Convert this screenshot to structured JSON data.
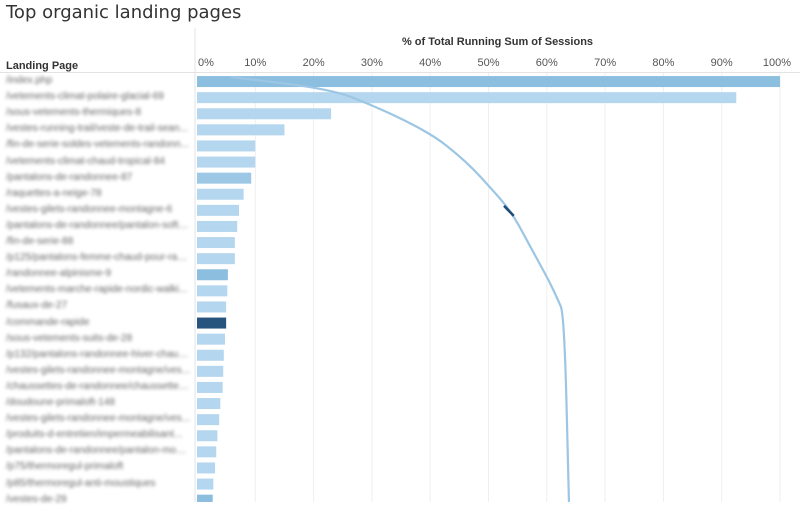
{
  "chart_data": {
    "type": "bar",
    "title": "Top organic landing pages",
    "axis_title": "% of Total Running Sum of Sessions",
    "row_header": "Landing Page",
    "xlim": [
      0,
      100
    ],
    "x_ticks": [
      "0%",
      "10%",
      "20%",
      "30%",
      "40%",
      "50%",
      "60%",
      "70%",
      "80%",
      "90%",
      "100%"
    ],
    "grid": true,
    "categories": [
      "/index.php",
      "/vetements-climat-polaire-glacial-69",
      "/sous-vetements-thermiques-8",
      "/vestes-running-trail/veste-de-trail-sean...",
      "/fin-de-serie-soldes-vetements-randonn...",
      "/vetements-climat-chaud-tropical-84",
      "/pantalons-de-randonnee-87",
      "/raquettes-a-neige-78",
      "/vestes-gilets-randonnee-montagne-6",
      "/pantalons-de-randonnee/pantalon-softs...",
      "/fin-de-serie-88",
      "/p125/pantalons-femme-chaud-pour-rand...",
      "/randonnee-alpinisme-9",
      "/vetements-marche-rapide-nordic-walki...",
      "/fusaux-de-27",
      "/commande-rapide",
      "/sous-vetements-suits-de-28",
      "/p132/pantalons-randonnee-hiver-chaud...",
      "/vestes-gilets-randonnee-montagne/ves...",
      "/chaussettes-de-randonnee/chaussettes...",
      "/doudoune-primaloft-148",
      "/vestes-gilets-randonnee-montagne/ves...",
      "/produits-d-entretien/impermeabilisant...",
      "/pantalons-de-randonnee/pantalon-mont...",
      "/p75/thermoregul-primaloft",
      "/p85/thermoregul-anti-moustiques",
      "/vestes-de-29"
    ],
    "values": [
      100,
      92.5,
      23,
      15,
      10,
      10,
      9.3,
      8,
      7.2,
      6.9,
      6.5,
      6.5,
      5.3,
      5.2,
      5.0,
      5.0,
      4.8,
      4.6,
      4.5,
      4.4,
      4.0,
      3.8,
      3.5,
      3.3,
      3.1,
      2.8,
      2.7
    ],
    "bar_colors": [
      "#8cbee0",
      "#b4d6ee",
      "#b4d6ee",
      "#b4d6ee",
      "#b4d6ee",
      "#b4d6ee",
      "#9dc8e5",
      "#b4d6ee",
      "#b4d6ee",
      "#b4d6ee",
      "#b4d6ee",
      "#b4d6ee",
      "#8cbee0",
      "#b4d6ee",
      "#b4d6ee",
      "#26547e",
      "#b4d6ee",
      "#b4d6ee",
      "#b4d6ee",
      "#b4d6ee",
      "#b4d6ee",
      "#b4d6ee",
      "#b4d6ee",
      "#b4d6ee",
      "#b4d6ee",
      "#b4d6ee",
      "#8cbee0"
    ],
    "curve": {
      "x": [
        23,
        30,
        36,
        41,
        44.5,
        47.5,
        50,
        52.5,
        54.5,
        56,
        57.5,
        59,
        60.5,
        61.8,
        63,
        63.8
      ],
      "color": "#9cc6e3",
      "highlight_color": "#1f4e78"
    }
  }
}
